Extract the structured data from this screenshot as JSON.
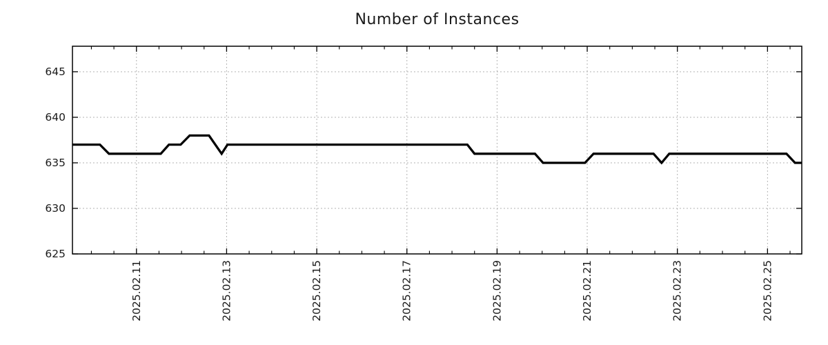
{
  "title": "Number of Instances",
  "colors": {
    "background": "#ffffff",
    "line": "#000000",
    "grid": "#a8a8a8",
    "axis": "#000000",
    "text": "#1a1a1a"
  },
  "chart_data": {
    "type": "line",
    "title": "Number of Instances",
    "xlabel": "",
    "ylabel": "",
    "grid": true,
    "legend": false,
    "x_axis": {
      "unit": "date (February 2025, day fraction)",
      "range": [
        9.58,
        25.76
      ],
      "tick_values": [
        11,
        13,
        15,
        17,
        19,
        21,
        23,
        25
      ],
      "tick_labels": [
        "2025.02.11",
        "2025.02.13",
        "2025.02.15",
        "2025.02.17",
        "2025.02.19",
        "2025.02.21",
        "2025.02.23",
        "2025.02.25"
      ],
      "minor_tick_step": 0.5,
      "tick_label_rotation": -90
    },
    "y_axis": {
      "range": [
        625,
        647.8
      ],
      "tick_values": [
        625,
        630,
        635,
        640,
        645
      ],
      "tick_labels": [
        "625",
        "630",
        "635",
        "640",
        "645"
      ],
      "grid_values": [
        630,
        635,
        640,
        645
      ]
    },
    "series": [
      {
        "name": "instances",
        "color": "#000000",
        "width": 3.3,
        "points": [
          [
            9.58,
            637
          ],
          [
            10.19,
            637
          ],
          [
            10.39,
            636
          ],
          [
            11.54,
            636
          ],
          [
            11.72,
            637
          ],
          [
            11.98,
            637
          ],
          [
            12.18,
            638
          ],
          [
            12.61,
            638
          ],
          [
            12.89,
            636
          ],
          [
            13.02,
            637
          ],
          [
            18.34,
            637
          ],
          [
            18.5,
            636
          ],
          [
            19.84,
            636
          ],
          [
            20.02,
            635
          ],
          [
            20.95,
            635
          ],
          [
            21.14,
            636
          ],
          [
            22.47,
            636
          ],
          [
            22.65,
            635
          ],
          [
            22.82,
            636
          ],
          [
            25.42,
            636
          ],
          [
            25.61,
            635
          ],
          [
            25.76,
            635
          ]
        ]
      }
    ]
  }
}
